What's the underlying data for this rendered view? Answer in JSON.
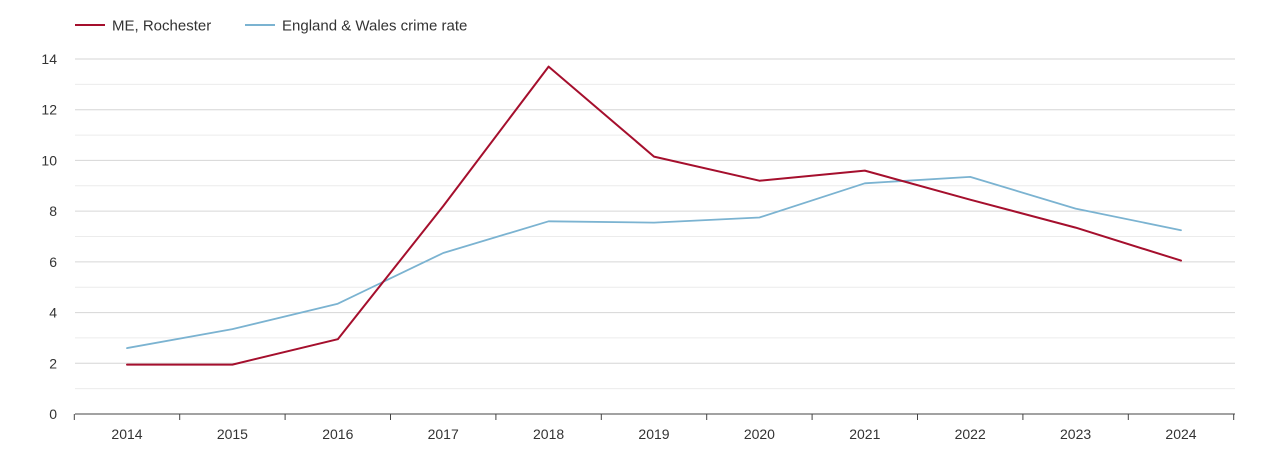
{
  "chart_data": {
    "type": "line",
    "title": "",
    "xlabel": "",
    "ylabel": "",
    "x": [
      "2014",
      "2015",
      "2016",
      "2017",
      "2018",
      "2019",
      "2020",
      "2021",
      "2022",
      "2023",
      "2024"
    ],
    "ylim": [
      0,
      14
    ],
    "yticks": [
      0,
      2,
      4,
      6,
      8,
      10,
      12,
      14
    ],
    "grid": true,
    "legend_position": "top-left",
    "series": [
      {
        "name": "ME, Rochester",
        "color": "#a50f2d",
        "values": [
          1.95,
          1.95,
          2.95,
          8.2,
          13.7,
          10.15,
          9.2,
          9.6,
          8.45,
          7.35,
          6.05
        ]
      },
      {
        "name": "England & Wales crime rate",
        "color": "#7bb3d1",
        "values": [
          2.6,
          3.35,
          4.35,
          6.35,
          7.6,
          7.55,
          7.75,
          9.1,
          9.35,
          8.1,
          7.25
        ]
      }
    ]
  }
}
